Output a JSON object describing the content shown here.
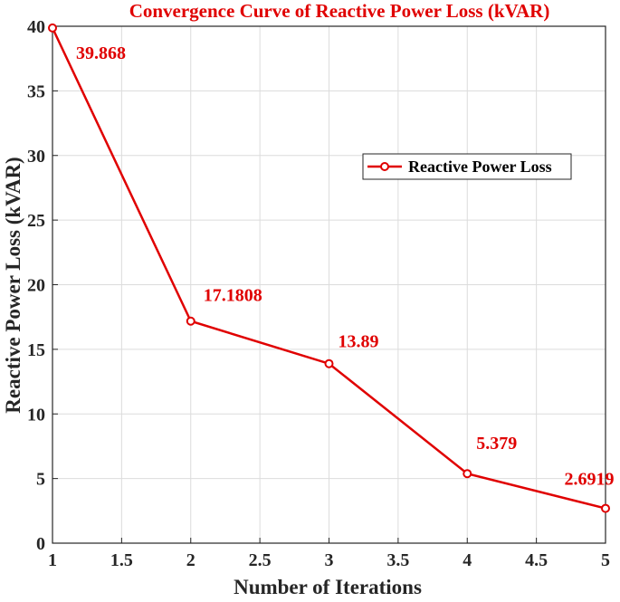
{
  "chart_data": {
    "type": "line",
    "title": "Convergence Curve of Reactive Power Loss (kVAR)",
    "xlabel": "Number of Iterations",
    "ylabel": "Reactive Power Loss (kVAR)",
    "xlim": [
      1,
      5
    ],
    "ylim": [
      0,
      40
    ],
    "grid": true,
    "legend_position": "upper-right",
    "x_ticks": [
      "1",
      "1.5",
      "2",
      "2.5",
      "3",
      "3.5",
      "4",
      "4.5",
      "5"
    ],
    "y_ticks": [
      "0",
      "5",
      "10",
      "15",
      "20",
      "25",
      "30",
      "35",
      "40"
    ],
    "series": [
      {
        "name": "Reactive Power Loss",
        "color": "#e00000",
        "marker": "circle",
        "x": [
          1,
          2,
          3,
          4,
          5
        ],
        "values": [
          39.868,
          17.1808,
          13.89,
          5.379,
          2.6919
        ]
      }
    ],
    "data_labels": [
      "39.868",
      "17.1808",
      "13.89",
      "5.379",
      "2.6919"
    ]
  }
}
